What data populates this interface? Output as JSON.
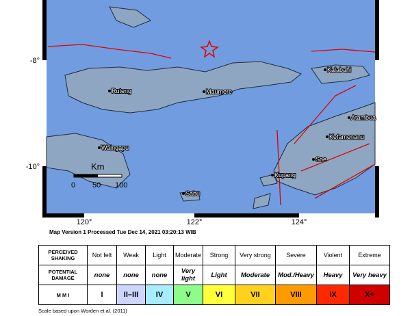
{
  "map": {
    "lat_labels": [
      "-8°",
      "-10°"
    ],
    "lon_labels": [
      "120°",
      "122°",
      "124°"
    ],
    "places": [
      "Ruteng",
      "Maumere",
      "Kalabahi",
      "Atambua",
      "Kefamenanu",
      "Soe",
      "Kupang",
      "Waingapu",
      "Sabu"
    ],
    "scale": {
      "unit": "Km",
      "labels": [
        "0",
        "50",
        "100"
      ]
    },
    "caption": "Map Version 1 Processed Tue Dec 14, 2021 03:20:13 WIB"
  },
  "table": {
    "row_labels": [
      "PERCEIVED SHAKING",
      "POTENTIAL DAMAGE",
      "M M I"
    ],
    "shaking": [
      "Not felt",
      "Weak",
      "Light",
      "Moderate",
      "Strong",
      "Very strong",
      "Severe",
      "Violent",
      "Extreme"
    ],
    "damage": [
      "none",
      "none",
      "none",
      "Very light",
      "Light",
      "Moderate",
      "Mod./Heavy",
      "Heavy",
      "Very heavy"
    ],
    "mmi": [
      "I",
      "II–III",
      "IV",
      "V",
      "VI",
      "VII",
      "VIII",
      "IX",
      "X+"
    ],
    "colors": [
      "#ffffff",
      "#cdd6ff",
      "#a6eeff",
      "#8dfc8a",
      "#ffff3a",
      "#ffd21e",
      "#ff9a00",
      "#ff2800",
      "#d00000"
    ]
  },
  "footnote": "Scale based upon Worden et al. (2011)"
}
